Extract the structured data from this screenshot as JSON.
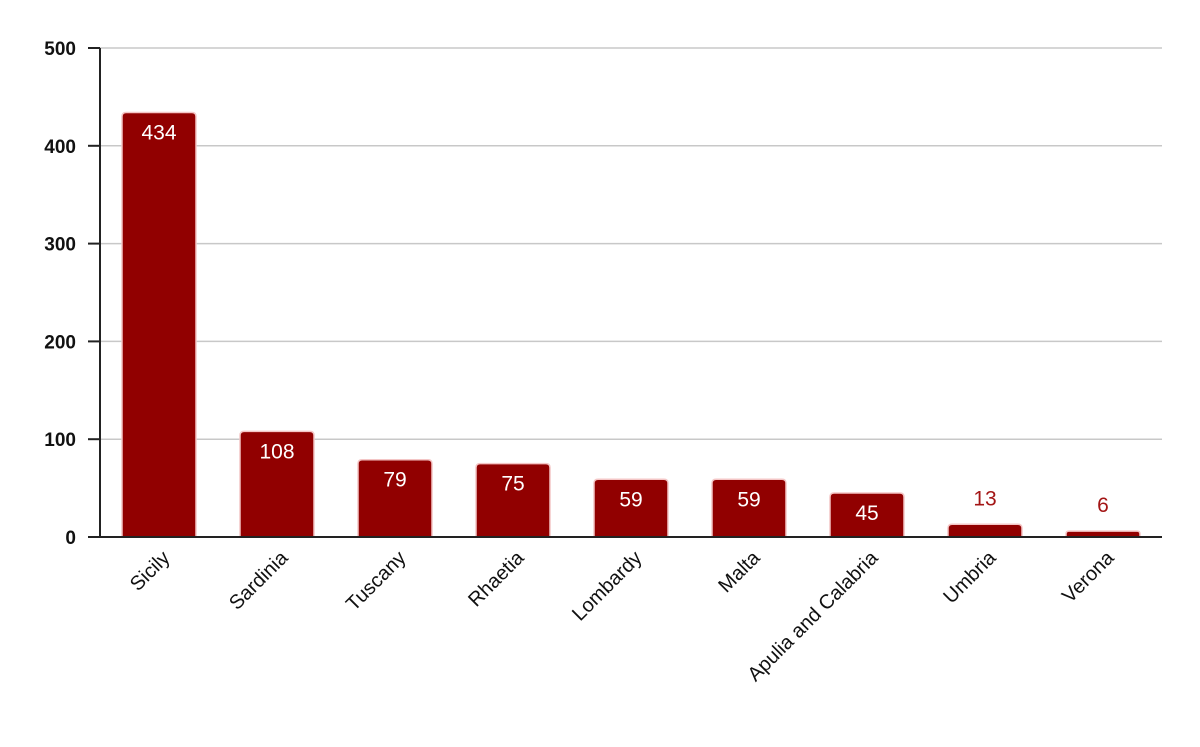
{
  "chart_data": {
    "type": "bar",
    "title": "",
    "xlabel": "",
    "ylabel": "",
    "categories": [
      "Sicily",
      "Sardinia",
      "Tuscany",
      "Rhaetia",
      "Lombardy",
      "Malta",
      "Apulia and Calabria",
      "Umbria",
      "Verona"
    ],
    "values": [
      434,
      108,
      79,
      75,
      59,
      59,
      45,
      13,
      6
    ],
    "ylim": [
      0,
      500
    ],
    "yticks": [
      0,
      100,
      200,
      300,
      400,
      500
    ],
    "grid": true,
    "legend": "none",
    "data_labels": true,
    "colors": {
      "bar": "#910000",
      "bar_border": "#f4c6c6",
      "label_inside": "#ffffff",
      "label_outside": "#a31515",
      "grid": "#c8c8c8",
      "axis": "#222222"
    }
  }
}
